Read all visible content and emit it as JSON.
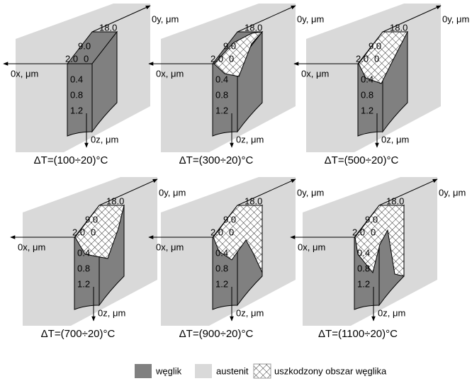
{
  "axes": {
    "x": "0x, μm",
    "y": "0y, μm",
    "z": "0z, μm"
  },
  "scale": {
    "top": [
      "18.0",
      "9.0",
      "2.0",
      "0"
    ],
    "depth": [
      "0.4",
      "0.8",
      "1.2"
    ]
  },
  "panels": [
    {
      "caption": "ΔT=(100÷20)°C"
    },
    {
      "caption": "ΔT=(300÷20)°C"
    },
    {
      "caption": "ΔT=(500÷20)°C"
    },
    {
      "caption": "ΔT=(700÷20)°C"
    },
    {
      "caption": "ΔT=(900÷20)°C"
    },
    {
      "caption": "ΔT=(1100÷20)°C"
    }
  ],
  "legend": [
    "węglik",
    "austenit",
    "uszkodzony obszar węglika"
  ]
}
